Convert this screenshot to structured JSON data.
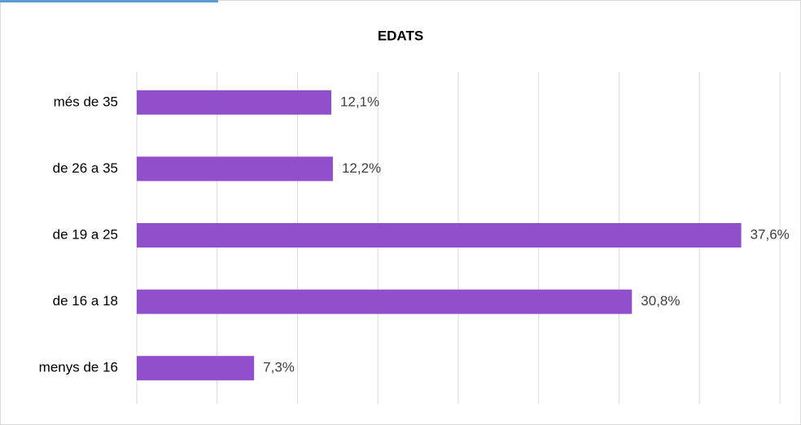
{
  "chart_data": {
    "type": "hbar",
    "title": "EDATS",
    "categories": [
      "més de 35",
      "de 26 a 35",
      "de 19 a 25",
      "de 16 a 18",
      "menys de 16"
    ],
    "values": [
      12.1,
      12.2,
      37.6,
      30.8,
      7.3
    ],
    "value_labels": [
      "12,1%",
      "12,2%",
      "37,6%",
      "30,8%",
      "7,3%"
    ],
    "color": "#924fcc",
    "xlim": [
      0,
      40
    ],
    "xticks": [
      0,
      5,
      10,
      15,
      20,
      25,
      30,
      35,
      40
    ],
    "grid": true
  }
}
